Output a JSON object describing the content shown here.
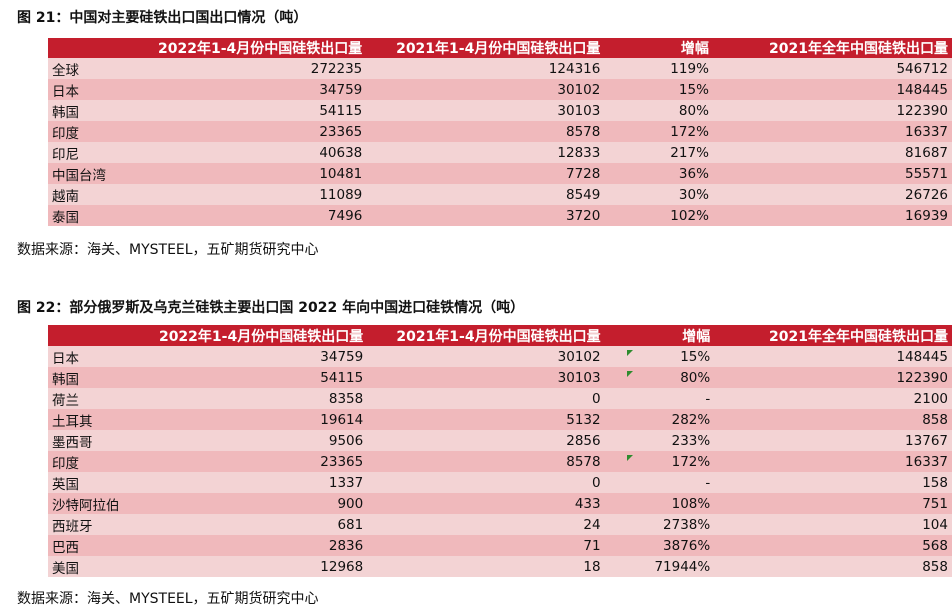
{
  "table1": {
    "title": "图 21：中国对主要硅铁出口国出口情况（吨）",
    "headers": [
      "",
      "2022年1-4月份中国硅铁出口量",
      "2021年1-4月份中国硅铁出口量",
      "增幅",
      "2021年全年中国硅铁出口量"
    ],
    "rows": [
      [
        "全球",
        "272235",
        "124316",
        "119%",
        "546712"
      ],
      [
        "日本",
        "34759",
        "30102",
        "15%",
        "148445"
      ],
      [
        "韩国",
        "54115",
        "30103",
        "80%",
        "122390"
      ],
      [
        "印度",
        "23365",
        "8578",
        "172%",
        "16337"
      ],
      [
        "印尼",
        "40638",
        "12833",
        "217%",
        "81687"
      ],
      [
        "中国台湾",
        "10481",
        "7728",
        "36%",
        "55571"
      ],
      [
        "越南",
        "11089",
        "8549",
        "30%",
        "26726"
      ],
      [
        "泰国",
        "7496",
        "3720",
        "102%",
        "16939"
      ]
    ],
    "source": "数据来源：海关、MYSTEEL，五矿期货研究中心"
  },
  "table2": {
    "title": "图 22：部分俄罗斯及乌克兰硅铁主要出口国 2022 年向中国进口硅铁情况（吨）",
    "headers": [
      "",
      "2022年1-4月份中国硅铁出口量",
      "2021年1-4月份中国硅铁出口量",
      "增幅",
      "2021年全年中国硅铁出口量"
    ],
    "rows": [
      [
        "日本",
        "34759",
        "30102",
        "15%",
        "148445"
      ],
      [
        "韩国",
        "54115",
        "30103",
        "80%",
        "122390"
      ],
      [
        "荷兰",
        "8358",
        "0",
        "-",
        "2100"
      ],
      [
        "土耳其",
        "19614",
        "5132",
        "282%",
        "858"
      ],
      [
        "墨西哥",
        "9506",
        "2856",
        "233%",
        "13767"
      ],
      [
        "印度",
        "23365",
        "8578",
        "172%",
        "16337"
      ],
      [
        "英国",
        "1337",
        "0",
        "-",
        "158"
      ],
      [
        "沙特阿拉伯",
        "900",
        "433",
        "108%",
        "751"
      ],
      [
        "西班牙",
        "681",
        "24",
        "2738%",
        "104"
      ],
      [
        "巴西",
        "2836",
        "71",
        "3876%",
        "568"
      ],
      [
        "美国",
        "12968",
        "18",
        "71944%",
        "858"
      ]
    ],
    "source": "数据来源：海关、MYSTEEL，五矿期货研究中心"
  }
}
